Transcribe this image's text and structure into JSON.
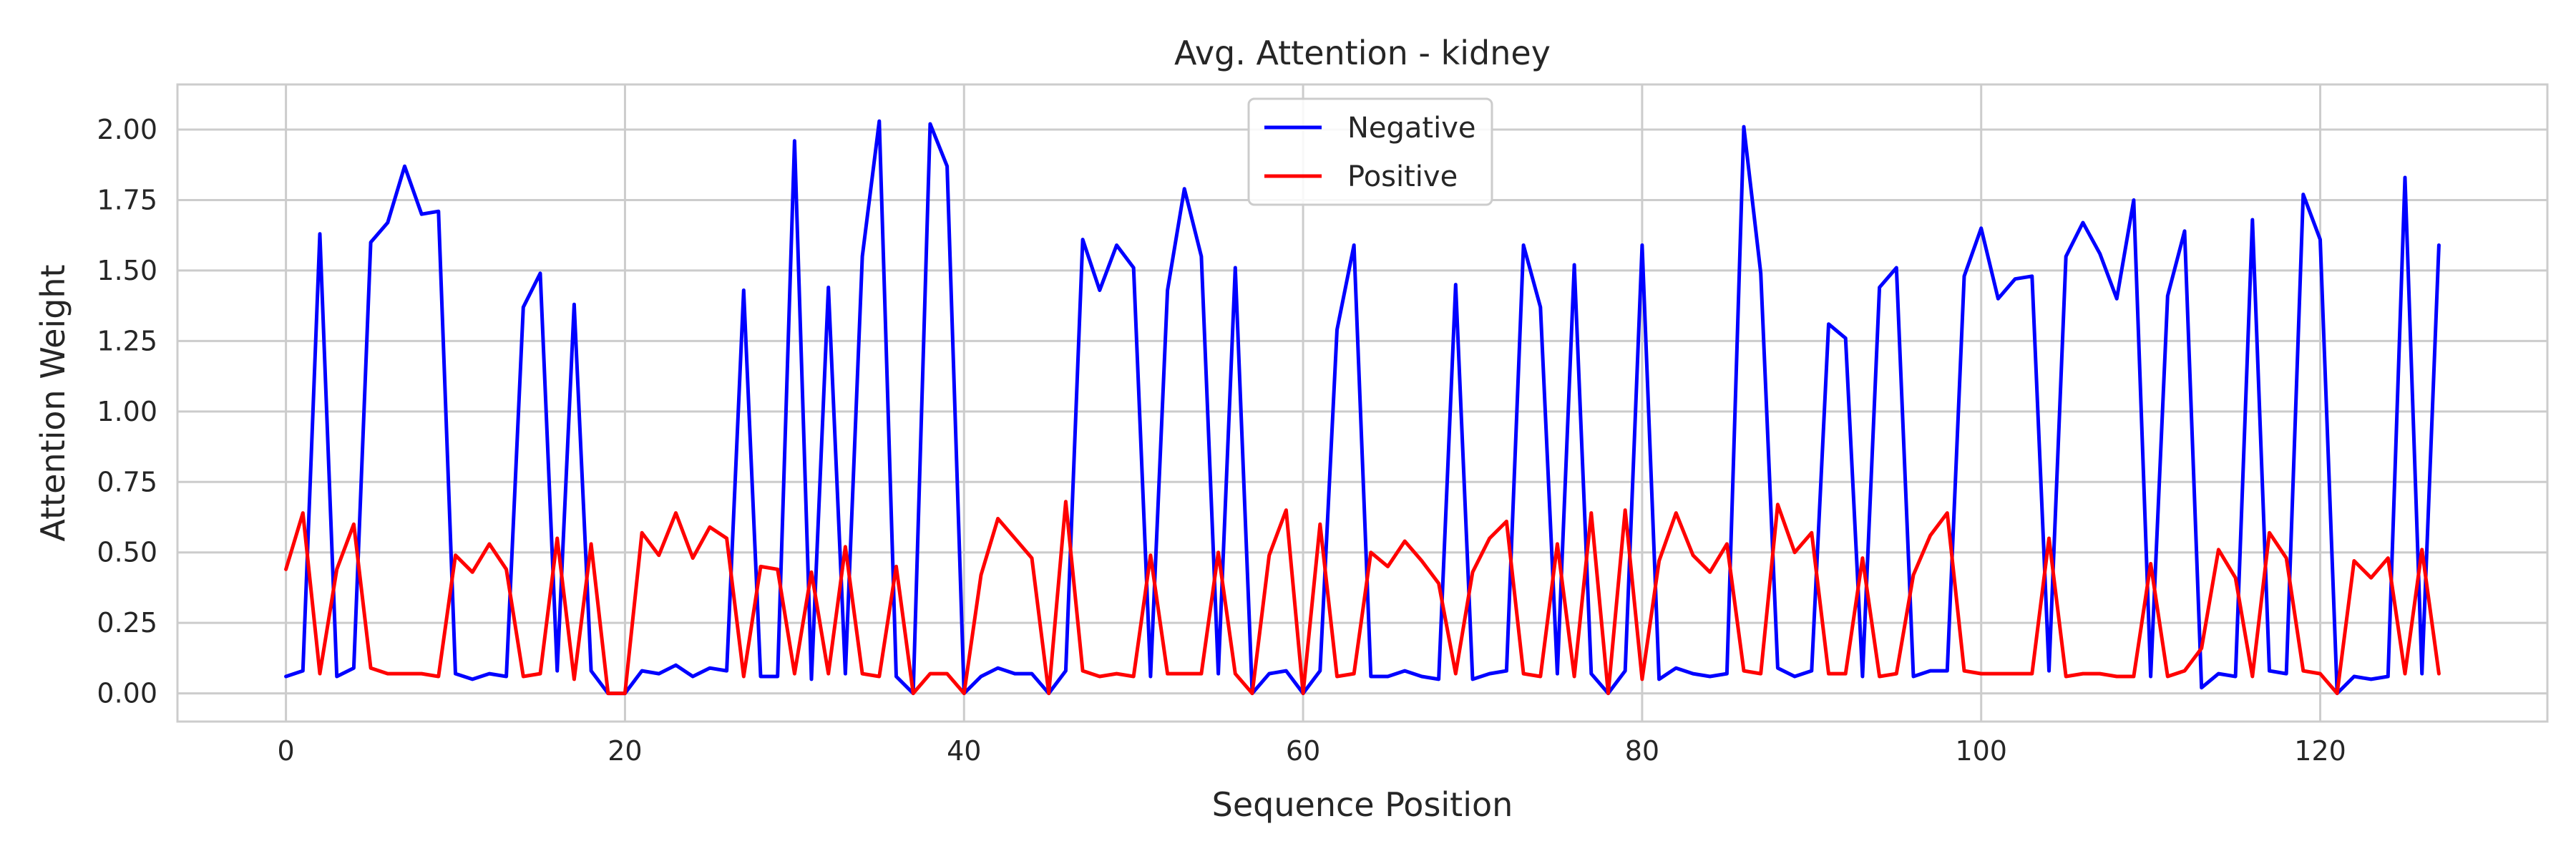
{
  "chart_data": {
    "type": "line",
    "title": "Avg. Attention - kidney",
    "xlabel": "Sequence Position",
    "ylabel": "Attention Weight",
    "xlim": [
      -6.4,
      133.4
    ],
    "ylim": [
      -0.1,
      2.16
    ],
    "xticks": [
      0,
      20,
      40,
      60,
      80,
      100,
      120
    ],
    "yticks": [
      0,
      0.25,
      0.5,
      0.75,
      1.0,
      1.25,
      1.5,
      1.75,
      2.0
    ],
    "ytick_labels": [
      "0.00",
      "0.25",
      "0.50",
      "0.75",
      "1.00",
      "1.25",
      "1.50",
      "1.75",
      "2.00"
    ],
    "grid": true,
    "legend_position": "top-center",
    "x": [
      0,
      1,
      2,
      3,
      4,
      5,
      6,
      7,
      8,
      9,
      10,
      11,
      12,
      13,
      14,
      15,
      16,
      17,
      18,
      19,
      20,
      21,
      22,
      23,
      24,
      25,
      26,
      27,
      28,
      29,
      30,
      31,
      32,
      33,
      34,
      35,
      36,
      37,
      38,
      39,
      40,
      41,
      42,
      43,
      44,
      45,
      46,
      47,
      48,
      49,
      50,
      51,
      52,
      53,
      54,
      55,
      56,
      57,
      58,
      59,
      60,
      61,
      62,
      63,
      64,
      65,
      66,
      67,
      68,
      69,
      70,
      71,
      72,
      73,
      74,
      75,
      76,
      77,
      78,
      79,
      80,
      81,
      82,
      83,
      84,
      85,
      86,
      87,
      88,
      89,
      90,
      91,
      92,
      93,
      94,
      95,
      96,
      97,
      98,
      99,
      100,
      101,
      102,
      103,
      104,
      105,
      106,
      107,
      108,
      109,
      110,
      111,
      112,
      113,
      114,
      115,
      116,
      117,
      118,
      119,
      120,
      121,
      122,
      123,
      124,
      125,
      126,
      127
    ],
    "series": [
      {
        "name": "Negative",
        "color": "#0000ff",
        "values": [
          0.06,
          0.08,
          1.63,
          0.06,
          0.09,
          1.6,
          1.67,
          1.87,
          1.7,
          1.71,
          0.07,
          0.05,
          0.07,
          0.06,
          1.37,
          1.49,
          0.08,
          1.38,
          0.08,
          0.0,
          0.0,
          0.08,
          0.07,
          0.1,
          0.06,
          0.09,
          0.08,
          1.43,
          0.06,
          0.06,
          1.96,
          0.05,
          1.44,
          0.07,
          1.55,
          2.03,
          0.06,
          0.0,
          2.02,
          1.87,
          0.0,
          0.06,
          0.09,
          0.07,
          0.07,
          0.0,
          0.08,
          1.61,
          1.43,
          1.59,
          1.51,
          0.06,
          1.43,
          1.79,
          1.55,
          0.07,
          1.51,
          0.0,
          0.07,
          0.08,
          0.0,
          0.08,
          1.29,
          1.59,
          0.06,
          0.06,
          0.08,
          0.06,
          0.05,
          1.45,
          0.05,
          0.07,
          0.08,
          1.59,
          1.37,
          0.07,
          1.52,
          0.07,
          0.0,
          0.08,
          1.59,
          0.05,
          0.09,
          0.07,
          0.06,
          0.07,
          2.01,
          1.49,
          0.09,
          0.06,
          0.08,
          1.31,
          1.26,
          0.06,
          1.44,
          1.51,
          0.06,
          0.08,
          0.08,
          1.48,
          1.65,
          1.4,
          1.47,
          1.48,
          0.08,
          1.55,
          1.67,
          1.56,
          1.4,
          1.75,
          0.06,
          1.41,
          1.64,
          0.02,
          0.07,
          0.06,
          1.68,
          0.08,
          0.07,
          1.77,
          1.61,
          0.0,
          0.06,
          0.05,
          0.06,
          1.83,
          0.07,
          1.59
        ]
      },
      {
        "name": "Positive",
        "color": "#ff0000",
        "values": [
          0.44,
          0.64,
          0.07,
          0.44,
          0.6,
          0.09,
          0.07,
          0.07,
          0.07,
          0.06,
          0.49,
          0.43,
          0.53,
          0.44,
          0.06,
          0.07,
          0.55,
          0.05,
          0.53,
          0.0,
          0.0,
          0.57,
          0.49,
          0.64,
          0.48,
          0.59,
          0.55,
          0.06,
          0.45,
          0.44,
          0.07,
          0.43,
          0.07,
          0.52,
          0.07,
          0.06,
          0.45,
          0.0,
          0.07,
          0.07,
          0.0,
          0.42,
          0.62,
          0.55,
          0.48,
          0.0,
          0.68,
          0.08,
          0.06,
          0.07,
          0.06,
          0.49,
          0.07,
          0.07,
          0.07,
          0.5,
          0.07,
          0.0,
          0.49,
          0.65,
          0.0,
          0.6,
          0.06,
          0.07,
          0.5,
          0.45,
          0.54,
          0.47,
          0.39,
          0.07,
          0.43,
          0.55,
          0.61,
          0.07,
          0.06,
          0.53,
          0.06,
          0.64,
          0.0,
          0.65,
          0.05,
          0.47,
          0.64,
          0.49,
          0.43,
          0.53,
          0.08,
          0.07,
          0.67,
          0.5,
          0.57,
          0.07,
          0.07,
          0.48,
          0.06,
          0.07,
          0.42,
          0.56,
          0.64,
          0.08,
          0.07,
          0.07,
          0.07,
          0.07,
          0.55,
          0.06,
          0.07,
          0.07,
          0.06,
          0.06,
          0.46,
          0.06,
          0.08,
          0.16,
          0.51,
          0.41,
          0.06,
          0.57,
          0.48,
          0.08,
          0.07,
          0.0,
          0.47,
          0.41,
          0.48,
          0.07,
          0.51,
          0.07
        ]
      }
    ]
  }
}
